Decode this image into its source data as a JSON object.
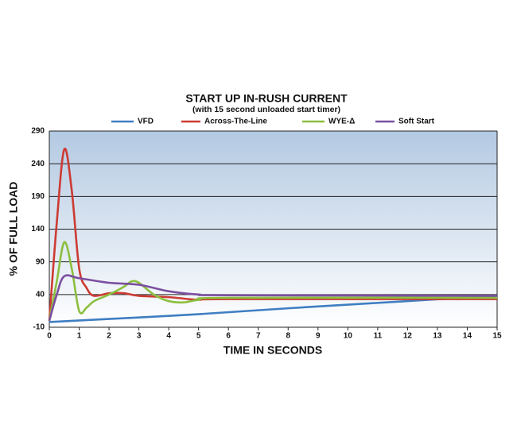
{
  "chart_data": {
    "type": "line",
    "title": "START UP IN-RUSH CURRENT",
    "subtitle": "(with 15 second unloaded start timer)",
    "x_label": "TIME IN SECONDS",
    "y_label": "% OF FULL LOAD",
    "xlim": [
      0,
      15
    ],
    "xticks": [
      0,
      1,
      2,
      3,
      4,
      5,
      6,
      7,
      8,
      9,
      10,
      11,
      12,
      13,
      14,
      15
    ],
    "ylim": [
      -10,
      290
    ],
    "yticks": [
      -10,
      40,
      90,
      140,
      190,
      240,
      290
    ],
    "grid": true,
    "legend": "top",
    "series": [
      {
        "name": "VFD",
        "color": "#3f7ec2",
        "x": [
          0,
          3,
          5,
          8,
          12,
          15
        ],
        "values": [
          -2,
          5,
          10,
          19,
          30,
          38
        ]
      },
      {
        "name": "Across-The-Line",
        "color": "#cc3b33",
        "x": [
          0,
          0.25,
          0.5,
          0.75,
          1,
          1.25,
          1.5,
          2,
          2.5,
          3,
          4,
          5,
          6,
          15
        ],
        "values": [
          0,
          150,
          262,
          200,
          80,
          50,
          38,
          42,
          42,
          38,
          36,
          32,
          33,
          33
        ]
      },
      {
        "name": "WYE-Δ",
        "color": "#8cbf3f",
        "x": [
          0,
          0.25,
          0.5,
          0.75,
          1,
          1.25,
          1.5,
          2,
          2.5,
          2.75,
          3,
          3.5,
          4,
          4.5,
          5,
          6,
          15
        ],
        "values": [
          0,
          60,
          120,
          80,
          15,
          20,
          30,
          40,
          52,
          60,
          58,
          40,
          30,
          28,
          32,
          35,
          35
        ]
      },
      {
        "name": "Soft Start",
        "color": "#7b4fa0",
        "x": [
          0,
          0.25,
          0.5,
          1,
          2,
          3,
          4,
          5,
          6,
          15
        ],
        "values": [
          0,
          40,
          68,
          65,
          58,
          55,
          45,
          40,
          39,
          38
        ]
      }
    ]
  }
}
